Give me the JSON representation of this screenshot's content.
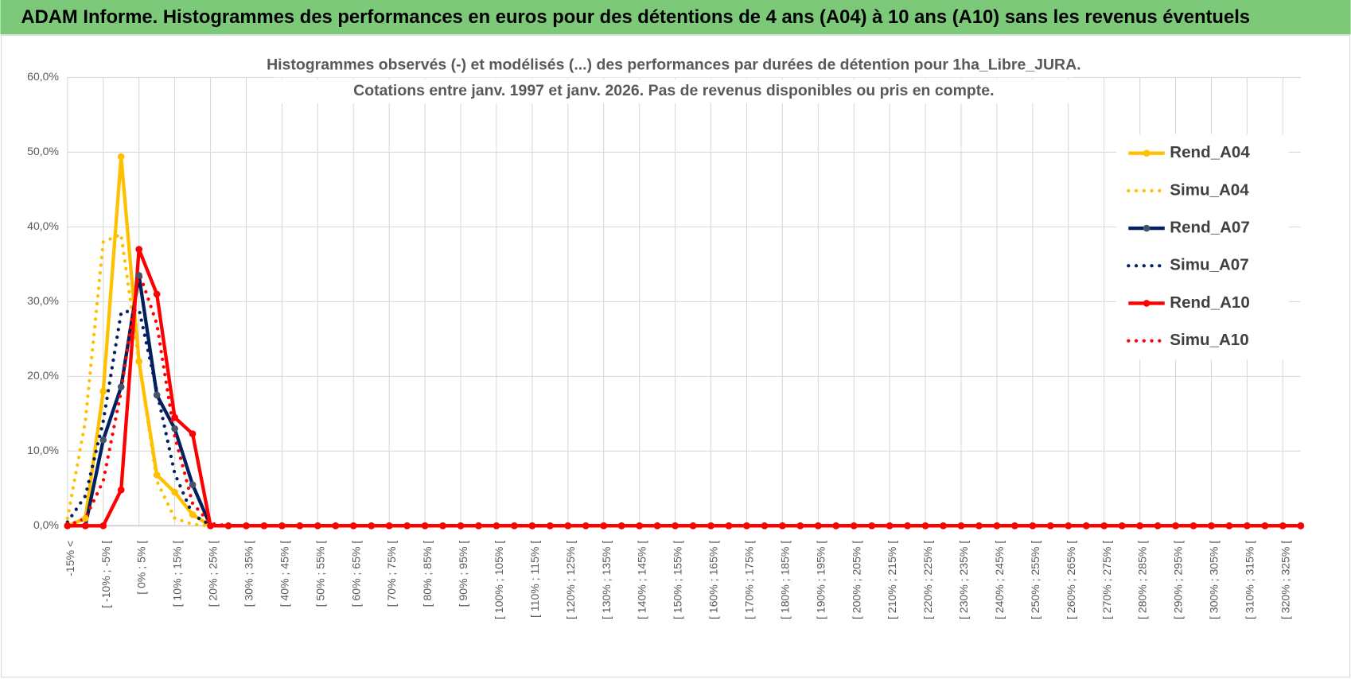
{
  "header": "ADAM Informe. Histogrammes des performances en euros pour des détentions de 4 ans (A04) à 10 ans (A10) sans les revenus éventuels",
  "chart_data": {
    "type": "line",
    "title_lines": [
      "Histogrammes observés (-) et modélisés (...) des performances par durées de détention pour 1ha_Libre_JURA.",
      "Cotations entre janv. 1997 et janv. 2026. Pas de revenus disponibles ou pris en compte."
    ],
    "categories": [
      "-15% <",
      null,
      "[ -10% ; -5% [",
      null,
      "[ 0% ; 5% [",
      null,
      "[ 10% ; 15% [",
      null,
      "[ 20% ; 25% [",
      null,
      "[ 30% ; 35% [",
      null,
      "[ 40% ; 45% [",
      null,
      "[ 50% ; 55% [",
      null,
      "[ 60% ; 65% [",
      null,
      "[ 70% ; 75% [",
      null,
      "[ 80% ; 85% [",
      null,
      "[ 90% ; 95% [",
      null,
      "[ 100% ; 105% [",
      null,
      "[ 110% ; 115% [",
      null,
      "[ 120% ; 125% [",
      null,
      "[ 130% ; 135% [",
      null,
      "[ 140% ; 145% [",
      null,
      "[ 150% ; 155% [",
      null,
      "[ 160% ; 165% [",
      null,
      "[ 170% ; 175% [",
      null,
      "[ 180% ; 185% [",
      null,
      "[ 190% ; 195% [",
      null,
      "[ 200% ; 205% [",
      null,
      "[ 210% ; 215% [",
      null,
      "[ 220% ; 225% [",
      null,
      "[ 230% ; 235% [",
      null,
      "[ 240% ; 245% [",
      null,
      "[ 250% ; 255% [",
      null,
      "[ 260% ; 265% [",
      null,
      "[ 270% ; 275% [",
      null,
      "[ 280% ; 285% [",
      null,
      "[ 290% ; 295% [",
      null,
      "[ 300% ; 305% [",
      null,
      "[ 310% ; 315% [",
      null,
      "[ 320% ; 325% [",
      null
    ],
    "series": [
      {
        "name": "Rend_A04",
        "color": "#FFC000",
        "line_style": "solid",
        "marker": true,
        "values": [
          0,
          1,
          18,
          49.4,
          22,
          6.8,
          4.5,
          1.5,
          0,
          0,
          0,
          0,
          0,
          0,
          0,
          0,
          0,
          0,
          0,
          0,
          0,
          0,
          0,
          0,
          0,
          0,
          0,
          0,
          0,
          0,
          0,
          0,
          0,
          0,
          0,
          0,
          0,
          0,
          0,
          0,
          0,
          0,
          0,
          0,
          0,
          0,
          0,
          0,
          0,
          0,
          0,
          0,
          0,
          0,
          0,
          0,
          0,
          0,
          0,
          0,
          0,
          0,
          0,
          0,
          0,
          0,
          0,
          0,
          0,
          0
        ]
      },
      {
        "name": "Simu_A04",
        "color": "#FFC000",
        "line_style": "dotted",
        "marker": false,
        "values": [
          1,
          14,
          38,
          39,
          22,
          6,
          1,
          0.2,
          0,
          0,
          0,
          0,
          0,
          0,
          0,
          0,
          0,
          0,
          0,
          0,
          0,
          0,
          0,
          0,
          0,
          0,
          0,
          0,
          0,
          0,
          0,
          0,
          0,
          0,
          0,
          0,
          0,
          0,
          0,
          0,
          0,
          0,
          0,
          0,
          0,
          0,
          0,
          0,
          0,
          0,
          0,
          0,
          0,
          0,
          0,
          0,
          0,
          0,
          0,
          0,
          0,
          0,
          0,
          0,
          0,
          0,
          0,
          0,
          0,
          0
        ]
      },
      {
        "name": "Rend_A07",
        "color": "#002060",
        "line_style": "solid",
        "marker": true,
        "values": [
          0,
          0,
          11.5,
          18.6,
          33.5,
          17.5,
          13,
          5.5,
          0,
          0,
          0,
          0,
          0,
          0,
          0,
          0,
          0,
          0,
          0,
          0,
          0,
          0,
          0,
          0,
          0,
          0,
          0,
          0,
          0,
          0,
          0,
          0,
          0,
          0,
          0,
          0,
          0,
          0,
          0,
          0,
          0,
          0,
          0,
          0,
          0,
          0,
          0,
          0,
          0,
          0,
          0,
          0,
          0,
          0,
          0,
          0,
          0,
          0,
          0,
          0,
          0,
          0,
          0,
          0,
          0,
          0,
          0,
          0,
          0,
          0
        ]
      },
      {
        "name": "Simu_A07",
        "color": "#002060",
        "line_style": "dotted",
        "marker": false,
        "values": [
          0.5,
          4,
          14,
          28.5,
          29,
          18,
          7,
          1.5,
          0.1,
          0,
          0,
          0,
          0,
          0,
          0,
          0,
          0,
          0,
          0,
          0,
          0,
          0,
          0,
          0,
          0,
          0,
          0,
          0,
          0,
          0,
          0,
          0,
          0,
          0,
          0,
          0,
          0,
          0,
          0,
          0,
          0,
          0,
          0,
          0,
          0,
          0,
          0,
          0,
          0,
          0,
          0,
          0,
          0,
          0,
          0,
          0,
          0,
          0,
          0,
          0,
          0,
          0,
          0,
          0,
          0,
          0,
          0,
          0,
          0,
          0
        ]
      },
      {
        "name": "Rend_A10",
        "color": "#FF0000",
        "line_style": "solid",
        "marker": true,
        "values": [
          0,
          0,
          0,
          4.8,
          37,
          31,
          14.5,
          12.3,
          0,
          0,
          0,
          0,
          0,
          0,
          0,
          0,
          0,
          0,
          0,
          0,
          0,
          0,
          0,
          0,
          0,
          0,
          0,
          0,
          0,
          0,
          0,
          0,
          0,
          0,
          0,
          0,
          0,
          0,
          0,
          0,
          0,
          0,
          0,
          0,
          0,
          0,
          0,
          0,
          0,
          0,
          0,
          0,
          0,
          0,
          0,
          0,
          0,
          0,
          0,
          0,
          0,
          0,
          0,
          0,
          0,
          0,
          0,
          0,
          0,
          0
        ]
      },
      {
        "name": "Simu_A10",
        "color": "#FF0000",
        "line_style": "dotted",
        "marker": false,
        "values": [
          0,
          1,
          6,
          18,
          34,
          27,
          12,
          3,
          0.3,
          0,
          0,
          0,
          0,
          0,
          0,
          0,
          0,
          0,
          0,
          0,
          0,
          0,
          0,
          0,
          0,
          0,
          0,
          0,
          0,
          0,
          0,
          0,
          0,
          0,
          0,
          0,
          0,
          0,
          0,
          0,
          0,
          0,
          0,
          0,
          0,
          0,
          0,
          0,
          0,
          0,
          0,
          0,
          0,
          0,
          0,
          0,
          0,
          0,
          0,
          0,
          0,
          0,
          0,
          0,
          0,
          0,
          0,
          0,
          0,
          0
        ]
      }
    ],
    "ylim": [
      0,
      60
    ],
    "yticks": [
      {
        "value": 0,
        "label": "0,0%"
      },
      {
        "value": 10,
        "label": "10,0%"
      },
      {
        "value": 20,
        "label": "20,0%"
      },
      {
        "value": 30,
        "label": "30,0%"
      },
      {
        "value": 40,
        "label": "40,0%"
      },
      {
        "value": 50,
        "label": "50,0%"
      },
      {
        "value": 60,
        "label": "60,0%"
      }
    ],
    "grid": true,
    "legend": "right"
  }
}
